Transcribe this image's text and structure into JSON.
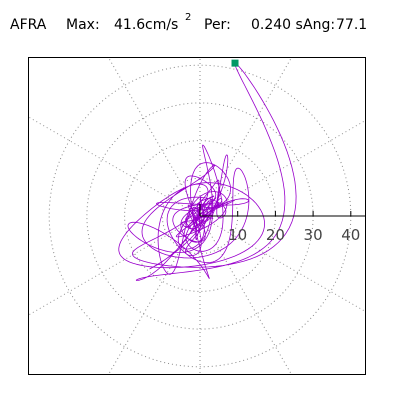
{
  "header": {
    "station": "AFRA",
    "max_label": "Max:",
    "max_value": "41.6",
    "max_unit": "cm/s",
    "max_unit_exp": "2",
    "per_label": "Per:",
    "per_value": "0.240 s",
    "ang_label": "Ang:",
    "ang_value": "77.1"
  },
  "chart_data": {
    "type": "polar-orbit",
    "title": "",
    "radial_unit": "cm/s^2",
    "rlim": [
      0,
      45
    ],
    "radial_ticks": [
      10,
      20,
      30,
      40
    ],
    "radial_tick_labels": [
      "10",
      "20",
      "30",
      "40"
    ],
    "angular_grid_deg": [
      30,
      60,
      90,
      120,
      150,
      210,
      240,
      270,
      300,
      330
    ],
    "grid": true,
    "grid_style": "dotted",
    "max_value": 41.6,
    "period_s": 0.24,
    "angle_deg": 77.1,
    "peak_marker": {
      "magnitude": 41.6,
      "angle_deg": 77.1,
      "color": "#009966"
    },
    "trace_color": "#9900cc"
  }
}
